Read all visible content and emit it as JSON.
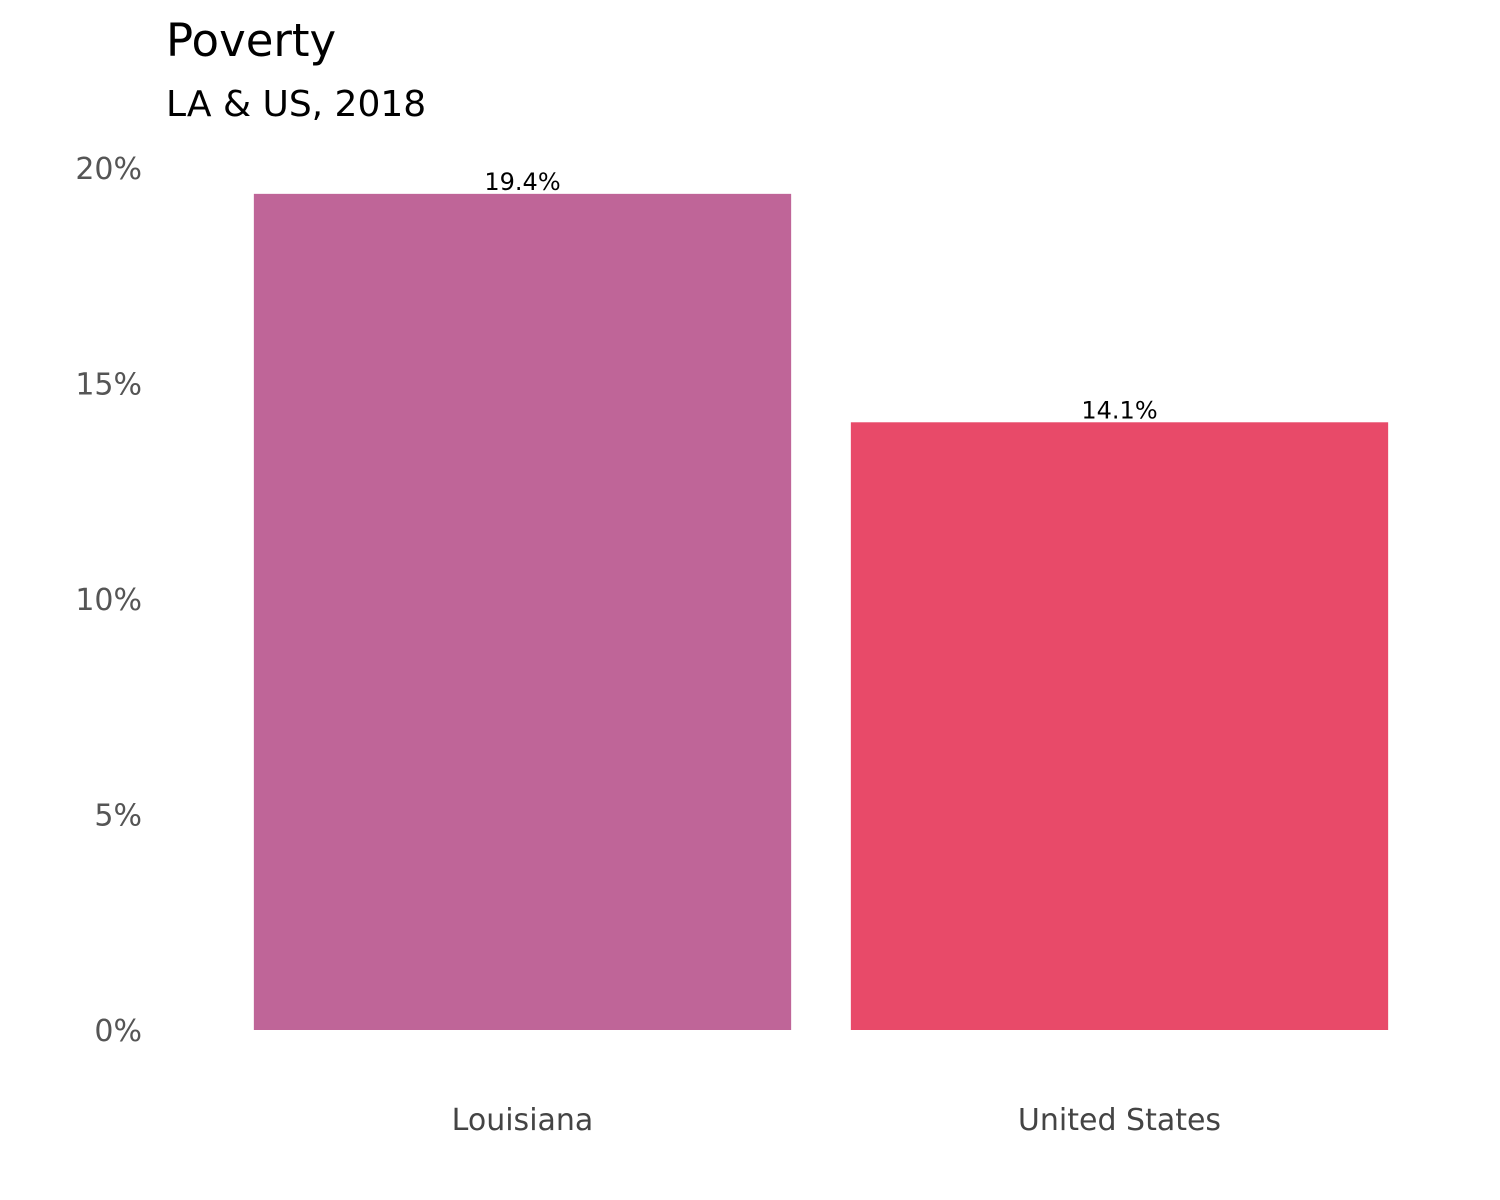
{
  "chart_data": {
    "type": "bar",
    "title": "Poverty",
    "subtitle": "LA & US, 2018",
    "xlabel": "",
    "ylabel": "",
    "categories": [
      "Louisiana",
      "United States"
    ],
    "values": [
      19.4,
      14.1
    ],
    "data_labels": [
      "19.4%",
      "14.1%"
    ],
    "colors": [
      "#bf6598",
      "#e84a69"
    ],
    "ylim": [
      0,
      20
    ],
    "yticks": [
      0,
      5,
      10,
      15,
      20
    ],
    "ytick_labels": [
      "0%",
      "5%",
      "10%",
      "15%",
      "20%"
    ],
    "grid": false,
    "legend": "none"
  }
}
